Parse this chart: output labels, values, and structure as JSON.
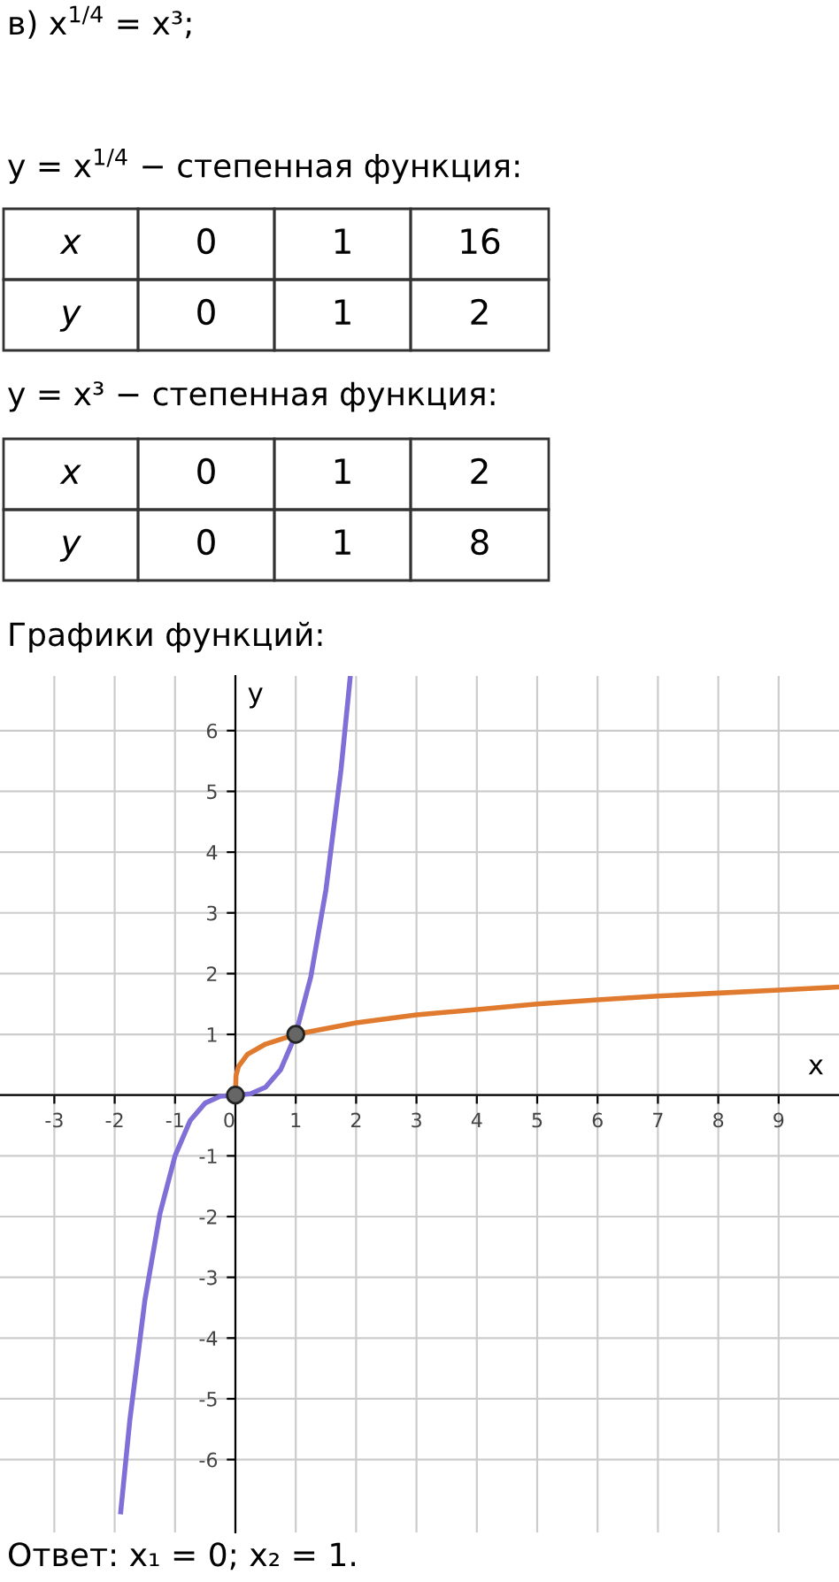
{
  "chart_data": [
    {
      "type": "other",
      "title": "в) x$^{1/4}$ = x³;",
      "subtitle": "y = x$^{1/4}$ − степенная функция:",
      "cell_labels": [
        [
          "x",
          "0",
          "1",
          "16"
        ],
        [
          "y",
          "0",
          "1",
          "2"
        ]
      ]
    },
    {
      "type": "other",
      "title": "y = x³ − степенная функция:",
      "cell_labels": [
        [
          "x",
          "0",
          "1",
          "2"
        ],
        [
          "y",
          "0",
          "1",
          "8"
        ]
      ]
    },
    {
      "type": "line",
      "title": "Графики функций:",
      "xlabel": "x",
      "ylabel": "y",
      "xlim": [
        -3.9,
        10.0
      ],
      "ylim": [
        -7.2,
        6.9
      ],
      "xticks": [
        -3,
        -2,
        -1,
        {
          "value": 0,
          "label": "0"
        },
        1,
        2,
        3,
        4,
        5,
        6,
        7,
        8,
        9
      ],
      "yticks": [
        -6,
        -5,
        -4,
        -3,
        -2,
        -1,
        {
          "value": 0,
          "label": null
        },
        1,
        2,
        3,
        4,
        5,
        6
      ],
      "grid": true,
      "series": [
        {
          "color": "#7f6fd6",
          "x": [
            -1.9,
            -1.75,
            -1.5,
            -1.25,
            -1,
            -0.75,
            -0.5,
            -0.25,
            0,
            0.25,
            0.5,
            0.75,
            1,
            1.25,
            1.5,
            1.75,
            1.9
          ],
          "values": [
            -6.86,
            -5.36,
            -3.38,
            -1.95,
            -1,
            -0.42,
            -0.13,
            -0.02,
            0,
            0.02,
            0.13,
            0.42,
            1,
            1.95,
            3.38,
            5.36,
            6.86
          ]
        },
        {
          "color": "#e07a2e",
          "x": [
            0,
            0.01,
            0.05,
            0.2,
            0.5,
            1,
            2,
            3,
            4,
            5,
            6,
            7,
            8,
            9,
            10
          ],
          "values": [
            0,
            0.32,
            0.47,
            0.67,
            0.84,
            1,
            1.19,
            1.32,
            1.41,
            1.5,
            1.57,
            1.63,
            1.68,
            1.73,
            1.78
          ]
        },
        {
          "type": "scatter",
          "color": "#666666",
          "marker": "circle",
          "x": [
            0,
            1
          ],
          "values": [
            0,
            1
          ]
        }
      ],
      "annotations": [
        "Ответ: x₁ = 0; x₂ = 1."
      ]
    }
  ]
}
